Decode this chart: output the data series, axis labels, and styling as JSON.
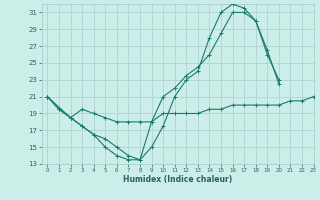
{
  "title": "",
  "xlabel": "Humidex (Indice chaleur)",
  "bg_color": "#cceee8",
  "grid_color": "#aacccc",
  "line_color": "#1a7a6e",
  "xlim": [
    -0.5,
    23
  ],
  "ylim": [
    13,
    32
  ],
  "yticks": [
    13,
    15,
    17,
    19,
    21,
    23,
    25,
    27,
    29,
    31
  ],
  "xticks": [
    0,
    1,
    2,
    3,
    4,
    5,
    6,
    7,
    8,
    9,
    10,
    11,
    12,
    13,
    14,
    15,
    16,
    17,
    18,
    19,
    20,
    21,
    22,
    23
  ],
  "series": [
    {
      "x": [
        0,
        1,
        2,
        3,
        4,
        5,
        6,
        7,
        8,
        9,
        10,
        11,
        12,
        13,
        14,
        15,
        16,
        17,
        18,
        19,
        20,
        21,
        22,
        23
      ],
      "y": [
        21,
        19.5,
        18.5,
        19.5,
        19,
        18.5,
        18,
        18,
        18,
        18,
        19,
        19,
        19,
        19,
        19.5,
        19.5,
        20,
        20,
        20,
        20,
        20,
        20.5,
        20.5,
        21
      ]
    },
    {
      "x": [
        0,
        1,
        2,
        3,
        4,
        5,
        6,
        7,
        8,
        9,
        10,
        11,
        12,
        13,
        14,
        15,
        16,
        17,
        18,
        19,
        20
      ],
      "y": [
        21,
        19.5,
        18.5,
        17.5,
        16.5,
        15,
        14,
        13.5,
        13.5,
        15,
        17.5,
        21,
        23,
        24,
        28,
        31,
        32,
        31.5,
        30,
        26,
        23
      ]
    },
    {
      "x": [
        0,
        2,
        3,
        4,
        5,
        6,
        7,
        8,
        9,
        10,
        11,
        12,
        13,
        14,
        15,
        16,
        17,
        18,
        19,
        20
      ],
      "y": [
        21,
        18.5,
        17.5,
        16.5,
        16,
        15,
        14,
        13.5,
        18,
        21,
        22,
        23.5,
        24.5,
        26,
        28.5,
        31,
        31,
        30,
        26.5,
        22.5
      ]
    }
  ]
}
